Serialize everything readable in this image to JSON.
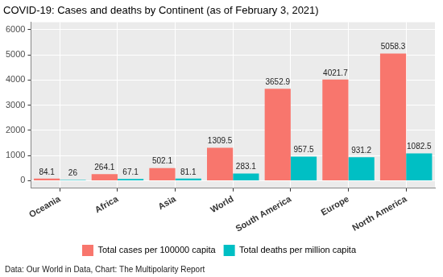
{
  "chart_data": {
    "type": "bar",
    "title": "COVID-19: Cases and deaths by Continent (as of February 3, 2021)",
    "caption": "Data: Our World in Data, Chart: The Multipolarity Report",
    "categories": [
      "Oceania",
      "Africa",
      "Asia",
      "World",
      "South America",
      "Europe",
      "North America"
    ],
    "series": [
      {
        "name": "Total cases per 100000 capita",
        "color": "#F8766D",
        "values": [
          84.1,
          264.1,
          502.1,
          1309.5,
          3652.9,
          4021.7,
          5058.3
        ]
      },
      {
        "name": "Total deaths per million capita",
        "color": "#00BFC4",
        "values": [
          26,
          67.1,
          81.1,
          283.1,
          957.5,
          931.2,
          1082.5
        ]
      }
    ],
    "ylim": [
      -300,
      6300
    ],
    "yticks": [
      0,
      1000,
      2000,
      3000,
      4000,
      5000,
      6000
    ],
    "grid": true,
    "legend": "bottom",
    "data_labels": true
  }
}
